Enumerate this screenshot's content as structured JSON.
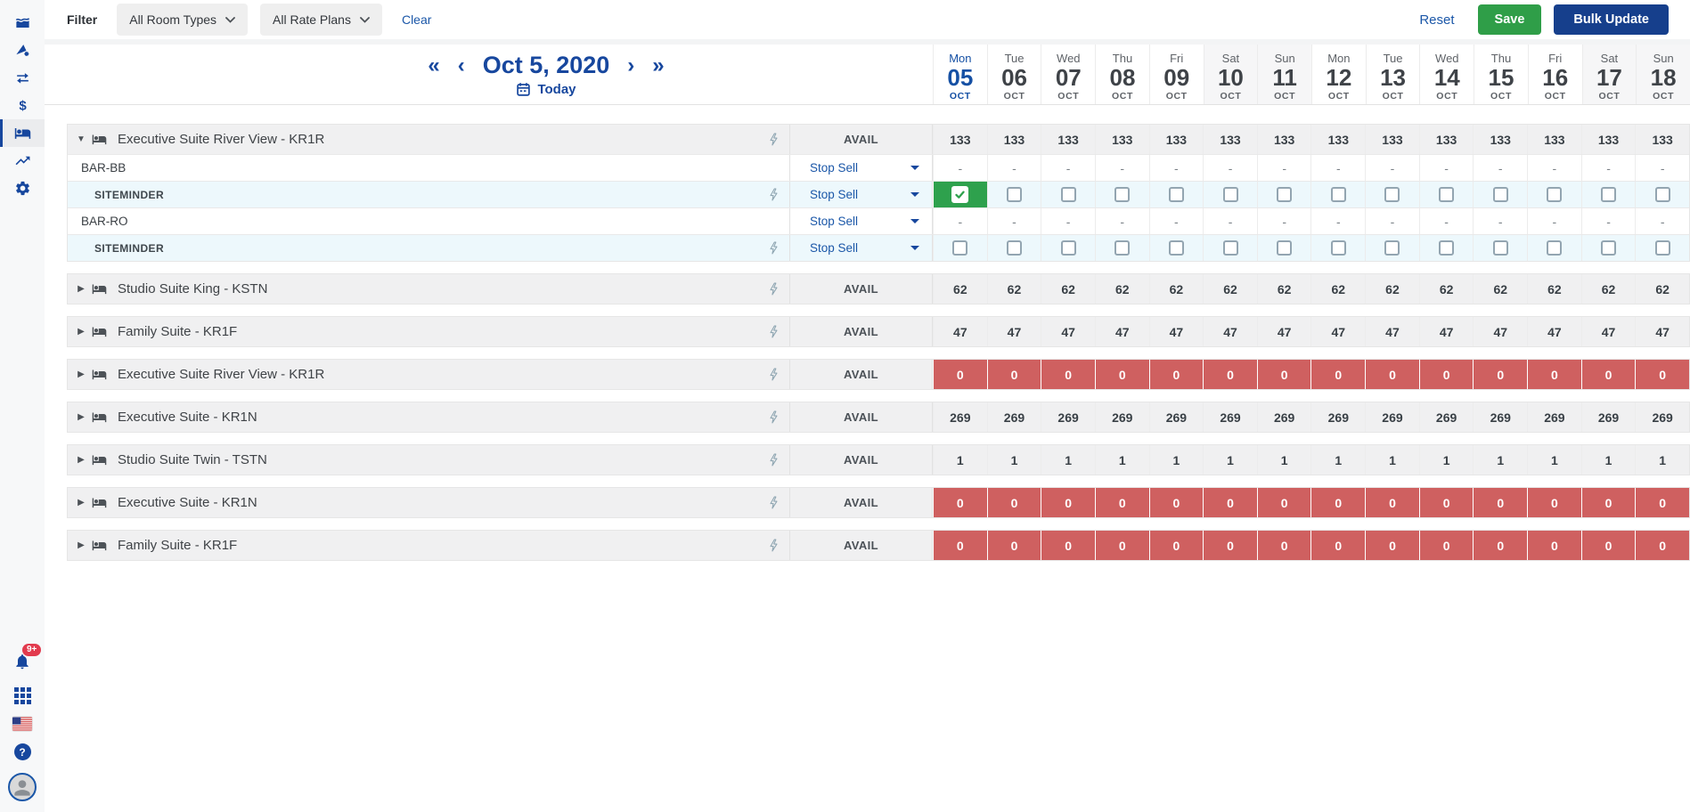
{
  "colors": {
    "accent_blue": "#17479e",
    "link_blue": "#1b57a8",
    "save_green": "#2f9e48",
    "checked_green": "#2ea14d",
    "bulk_navy": "#163f8c",
    "sold_out_red": "#cf6060",
    "badge_red": "#e23b4e",
    "channel_row_blue": "#edf8fc",
    "header_row_gray": "#f0f0f1"
  },
  "sidebar": {
    "items": [
      {
        "icon": "area-chart-icon",
        "active": false
      },
      {
        "icon": "report-gear-icon",
        "active": false
      },
      {
        "icon": "swap-arrows-icon",
        "active": false
      },
      {
        "icon": "dollar-icon",
        "active": false
      },
      {
        "icon": "bed-icon",
        "active": true
      },
      {
        "icon": "trending-up-icon",
        "active": false
      },
      {
        "icon": "settings-gear-icon",
        "active": false
      }
    ],
    "notifications_badge": "9+",
    "bottom_icons": [
      "bell-icon",
      "apps-grid-icon",
      "us-flag-icon",
      "help-icon",
      "user-avatar"
    ]
  },
  "toolbar": {
    "filter_label": "Filter",
    "room_types": "All Room Types",
    "rate_plans": "All Rate Plans",
    "clear": "Clear",
    "reset": "Reset",
    "save": "Save",
    "bulk_update": "Bulk Update"
  },
  "date_nav": {
    "date": "Oct 5, 2020",
    "today": "Today"
  },
  "calendar": {
    "days": [
      {
        "dow": "Mon",
        "num": "05",
        "mon": "OCT",
        "active": true,
        "weekend": false
      },
      {
        "dow": "Tue",
        "num": "06",
        "mon": "OCT",
        "active": false,
        "weekend": false
      },
      {
        "dow": "Wed",
        "num": "07",
        "mon": "OCT",
        "active": false,
        "weekend": false
      },
      {
        "dow": "Thu",
        "num": "08",
        "mon": "OCT",
        "active": false,
        "weekend": false
      },
      {
        "dow": "Fri",
        "num": "09",
        "mon": "OCT",
        "active": false,
        "weekend": false
      },
      {
        "dow": "Sat",
        "num": "10",
        "mon": "OCT",
        "active": false,
        "weekend": true
      },
      {
        "dow": "Sun",
        "num": "11",
        "mon": "OCT",
        "active": false,
        "weekend": true
      },
      {
        "dow": "Mon",
        "num": "12",
        "mon": "OCT",
        "active": false,
        "weekend": false
      },
      {
        "dow": "Tue",
        "num": "13",
        "mon": "OCT",
        "active": false,
        "weekend": false
      },
      {
        "dow": "Wed",
        "num": "14",
        "mon": "OCT",
        "active": false,
        "weekend": false
      },
      {
        "dow": "Thu",
        "num": "15",
        "mon": "OCT",
        "active": false,
        "weekend": false
      },
      {
        "dow": "Fri",
        "num": "16",
        "mon": "OCT",
        "active": false,
        "weekend": false
      },
      {
        "dow": "Sat",
        "num": "17",
        "mon": "OCT",
        "active": false,
        "weekend": true
      },
      {
        "dow": "Sun",
        "num": "18",
        "mon": "OCT",
        "active": false,
        "weekend": true
      }
    ]
  },
  "grid": {
    "avail_label": "AVAIL",
    "stop_sell_label": "Stop Sell",
    "groups": [
      {
        "name": "Executive Suite River View - KR1R",
        "expanded": true,
        "state": "normal",
        "values": [
          "133",
          "133",
          "133",
          "133",
          "133",
          "133",
          "133",
          "133",
          "133",
          "133",
          "133",
          "133",
          "133",
          "133"
        ],
        "rate_plans": [
          {
            "name": "BAR-BB",
            "channel": false,
            "cells": "dash",
            "values": [
              "-",
              "-",
              "-",
              "-",
              "-",
              "-",
              "-",
              "-",
              "-",
              "-",
              "-",
              "-",
              "-",
              "-"
            ]
          },
          {
            "name": "SITEMINDER",
            "channel": true,
            "cells": "checkbox",
            "checked": [
              true,
              false,
              false,
              false,
              false,
              false,
              false,
              false,
              false,
              false,
              false,
              false,
              false,
              false
            ]
          },
          {
            "name": "BAR-RO",
            "channel": false,
            "cells": "dash",
            "values": [
              "-",
              "-",
              "-",
              "-",
              "-",
              "-",
              "-",
              "-",
              "-",
              "-",
              "-",
              "-",
              "-",
              "-"
            ]
          },
          {
            "name": "SITEMINDER",
            "channel": true,
            "cells": "checkbox",
            "checked": [
              false,
              false,
              false,
              false,
              false,
              false,
              false,
              false,
              false,
              false,
              false,
              false,
              false,
              false
            ]
          }
        ]
      },
      {
        "name": "Studio Suite King - KSTN",
        "expanded": false,
        "state": "normal",
        "values": [
          "62",
          "62",
          "62",
          "62",
          "62",
          "62",
          "62",
          "62",
          "62",
          "62",
          "62",
          "62",
          "62",
          "62"
        ],
        "rate_plans": []
      },
      {
        "name": "Family Suite - KR1F",
        "expanded": false,
        "state": "normal",
        "values": [
          "47",
          "47",
          "47",
          "47",
          "47",
          "47",
          "47",
          "47",
          "47",
          "47",
          "47",
          "47",
          "47",
          "47"
        ],
        "rate_plans": []
      },
      {
        "name": "Executive Suite River View - KR1R",
        "expanded": false,
        "state": "sold_out",
        "values": [
          "0",
          "0",
          "0",
          "0",
          "0",
          "0",
          "0",
          "0",
          "0",
          "0",
          "0",
          "0",
          "0",
          "0"
        ],
        "rate_plans": []
      },
      {
        "name": "Executive Suite - KR1N",
        "expanded": false,
        "state": "normal",
        "values": [
          "269",
          "269",
          "269",
          "269",
          "269",
          "269",
          "269",
          "269",
          "269",
          "269",
          "269",
          "269",
          "269",
          "269"
        ],
        "rate_plans": []
      },
      {
        "name": "Studio Suite Twin - TSTN",
        "expanded": false,
        "state": "normal",
        "values": [
          "1",
          "1",
          "1",
          "1",
          "1",
          "1",
          "1",
          "1",
          "1",
          "1",
          "1",
          "1",
          "1",
          "1"
        ],
        "rate_plans": []
      },
      {
        "name": "Executive Suite - KR1N",
        "expanded": false,
        "state": "sold_out",
        "values": [
          "0",
          "0",
          "0",
          "0",
          "0",
          "0",
          "0",
          "0",
          "0",
          "0",
          "0",
          "0",
          "0",
          "0"
        ],
        "rate_plans": []
      },
      {
        "name": "Family Suite - KR1F",
        "expanded": false,
        "state": "sold_out",
        "values": [
          "0",
          "0",
          "0",
          "0",
          "0",
          "0",
          "0",
          "0",
          "0",
          "0",
          "0",
          "0",
          "0",
          "0"
        ],
        "rate_plans": []
      }
    ]
  }
}
